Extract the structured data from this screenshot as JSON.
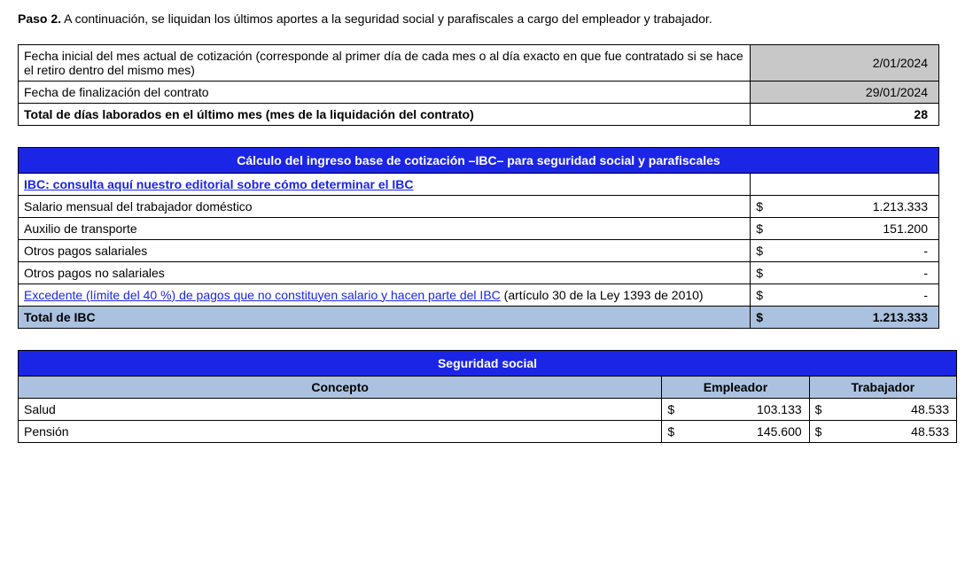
{
  "step": {
    "label": "Paso 2.",
    "text": "A continuación, se liquidan los últimos aportes a la seguridad social y parafiscales a cargo del empleador y trabajador."
  },
  "table1": {
    "rows": [
      {
        "label": "Fecha inicial del mes actual de cotización (corresponde al primer día de cada mes o al día exacto en que fue contratado si se hace el retiro dentro del mismo mes)",
        "value": "2/01/2024",
        "shaded": true
      },
      {
        "label": "Fecha de finalización del contrato",
        "value": "29/01/2024",
        "shaded": true
      },
      {
        "label": "Total de días laborados en el último mes (mes de la liquidación del contrato)",
        "value": "28",
        "bold": true
      }
    ]
  },
  "table2": {
    "header": "Cálculo del ingreso base de cotización –IBC– para seguridad social y parafiscales",
    "link_row": "IBC: consulta aquí nuestro editorial sobre cómo determinar el IBC",
    "rows": [
      {
        "label": "Salario mensual del trabajador doméstico",
        "sym": "$",
        "value": "1.213.333"
      },
      {
        "label": "Auxilio de transporte",
        "sym": "$",
        "value": "151.200"
      },
      {
        "label": "Otros pagos salariales",
        "sym": "$",
        "value": "-"
      },
      {
        "label": "Otros pagos no salariales",
        "sym": "$",
        "value": "-"
      }
    ],
    "excedente": {
      "link": "Excedente (límite del 40 %) de pagos que no constituyen salario y hacen parte del IBC",
      "suffix": " (artículo 30 de la Ley 1393 de 2010)",
      "sym": "$",
      "value": "-"
    },
    "total": {
      "label": "Total de IBC",
      "sym": "$",
      "value": "1.213.333"
    },
    "colors": {
      "header_bg": "#1b25e6",
      "total_bg": "#aac2e0",
      "link_color": "#1b25e6"
    }
  },
  "table3": {
    "header": "Seguridad social",
    "columns": {
      "c1": "Concepto",
      "c2": "Empleador",
      "c3": "Trabajador"
    },
    "rows": [
      {
        "concepto": "Salud",
        "emp_sym": "$",
        "emp_val": "103.133",
        "tra_sym": "$",
        "tra_val": "48.533"
      },
      {
        "concepto": "Pensión",
        "emp_sym": "$",
        "emp_val": "145.600",
        "tra_sym": "$",
        "tra_val": "48.533"
      }
    ],
    "colors": {
      "header_bg": "#1b25e6",
      "subhdr_bg": "#aac2e0"
    }
  }
}
